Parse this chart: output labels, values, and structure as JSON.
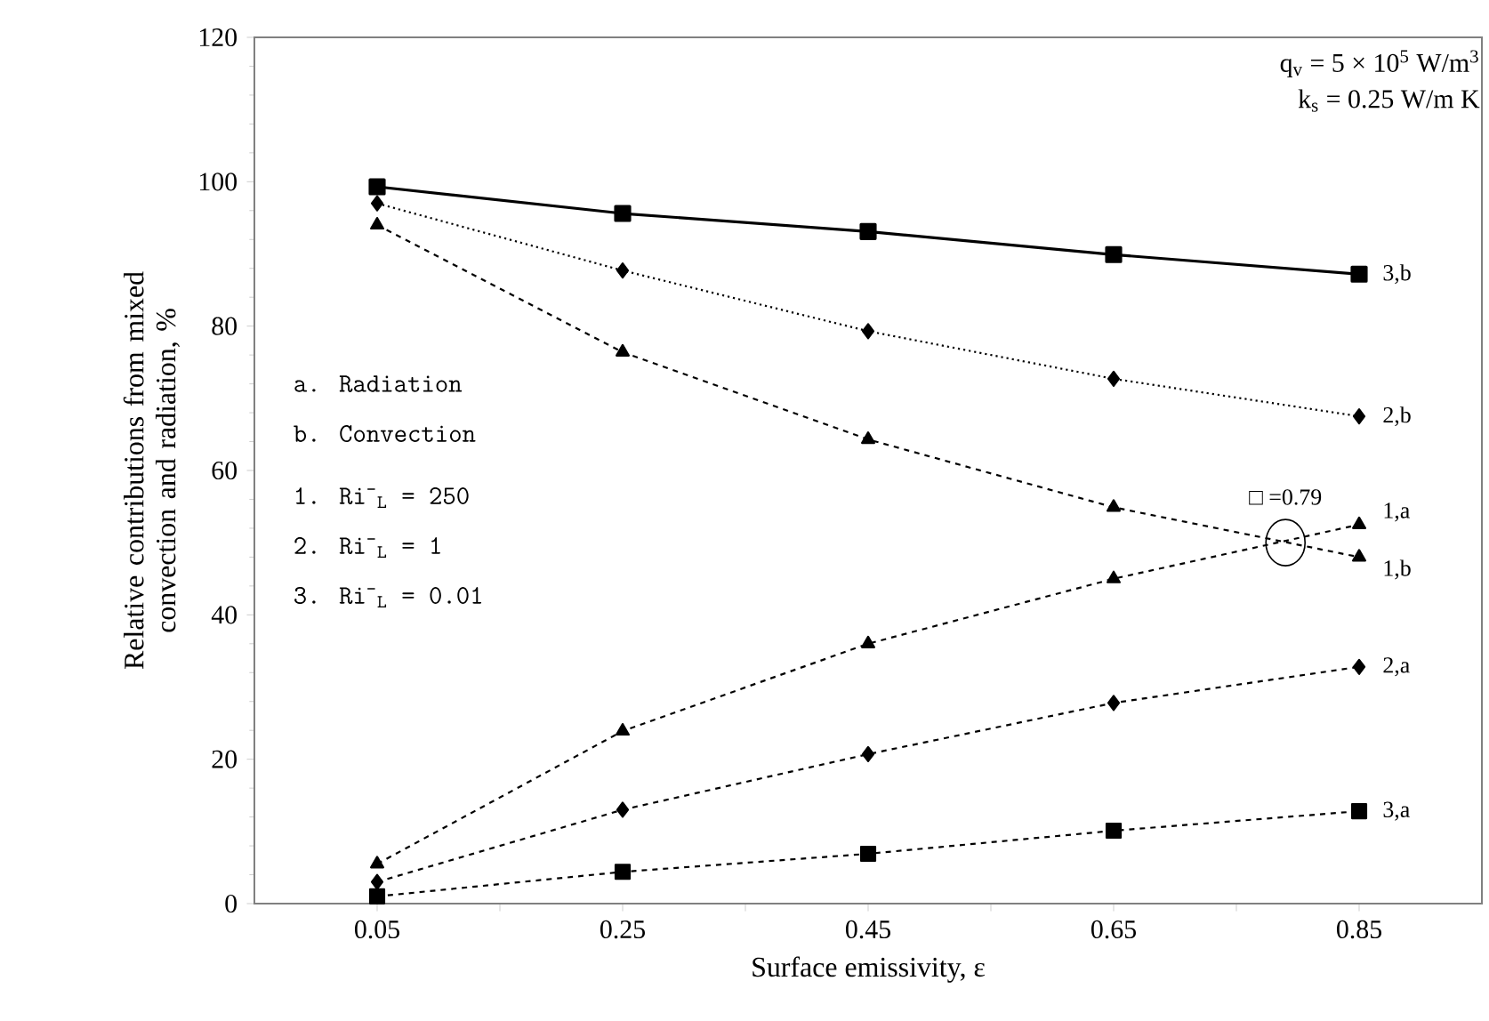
{
  "chart_data": {
    "type": "line",
    "xlabel": "Surface emissivity, ε",
    "ylabel": "Relative contributions from mixed convection and radiation, %",
    "x": [
      0.05,
      0.25,
      0.45,
      0.65,
      0.85
    ],
    "series": [
      {
        "name": "3,b",
        "color": "#000000",
        "values": [
          99.3,
          95.6,
          93.1,
          89.9,
          87.2
        ],
        "marker": "square",
        "line_style": "solid"
      },
      {
        "name": "2,b",
        "color": "#000000",
        "values": [
          97,
          87.7,
          79.3,
          72.7,
          67.5
        ],
        "marker": "diamond",
        "line_style": "dotted"
      },
      {
        "name": "1,b",
        "color": "#000000",
        "values": [
          94,
          76.4,
          64.3,
          54.9,
          48
        ],
        "marker": "triangle",
        "line_style": "dashed"
      },
      {
        "name": "1,a",
        "color": "#000000",
        "values": [
          5.5,
          23.9,
          36,
          45,
          52.5
        ],
        "marker": "triangle",
        "line_style": "dashed"
      },
      {
        "name": "2,a",
        "color": "#000000",
        "values": [
          3,
          13,
          20.7,
          27.8,
          32.8
        ],
        "marker": "diamond",
        "line_style": "dashed"
      },
      {
        "name": "3,a",
        "color": "#000000",
        "values": [
          1,
          4.4,
          6.9,
          10.1,
          12.8
        ],
        "marker": "square",
        "line_style": "dashed"
      }
    ],
    "xlim": [
      -0.05,
      0.95
    ],
    "ylim": [
      0,
      120
    ],
    "xticks": [
      {
        "value": 0.05,
        "label": "0.05"
      },
      {
        "value": 0.15,
        "label": null
      },
      {
        "value": 0.25,
        "label": "0.25"
      },
      {
        "value": 0.35,
        "label": null
      },
      {
        "value": 0.45,
        "label": "0.45"
      },
      {
        "value": 0.55,
        "label": null
      },
      {
        "value": 0.65,
        "label": "0.65"
      },
      {
        "value": 0.75,
        "label": null
      },
      {
        "value": 0.85,
        "label": "0.85"
      }
    ],
    "yticks": [
      0,
      20,
      40,
      60,
      80,
      100,
      120
    ],
    "grid": false,
    "legend": false,
    "annotations": [
      "q$_{v}$ = 5 × 10$^{5}$ W/m$^{3}$",
      "k$_{s}$ = 0.25 W/m K",
      "a. Radiation",
      "b. Convection",
      "1. Ri$^{-}$$_{L}$ = 250",
      "2. Ri$^{-}$$_{L}$ = 1",
      "3. Ri$^{-}$$_{L}$ = 0.01",
      {
        "text": "□ =0.79",
        "x": 0.79,
        "y": 50
      }
    ]
  }
}
